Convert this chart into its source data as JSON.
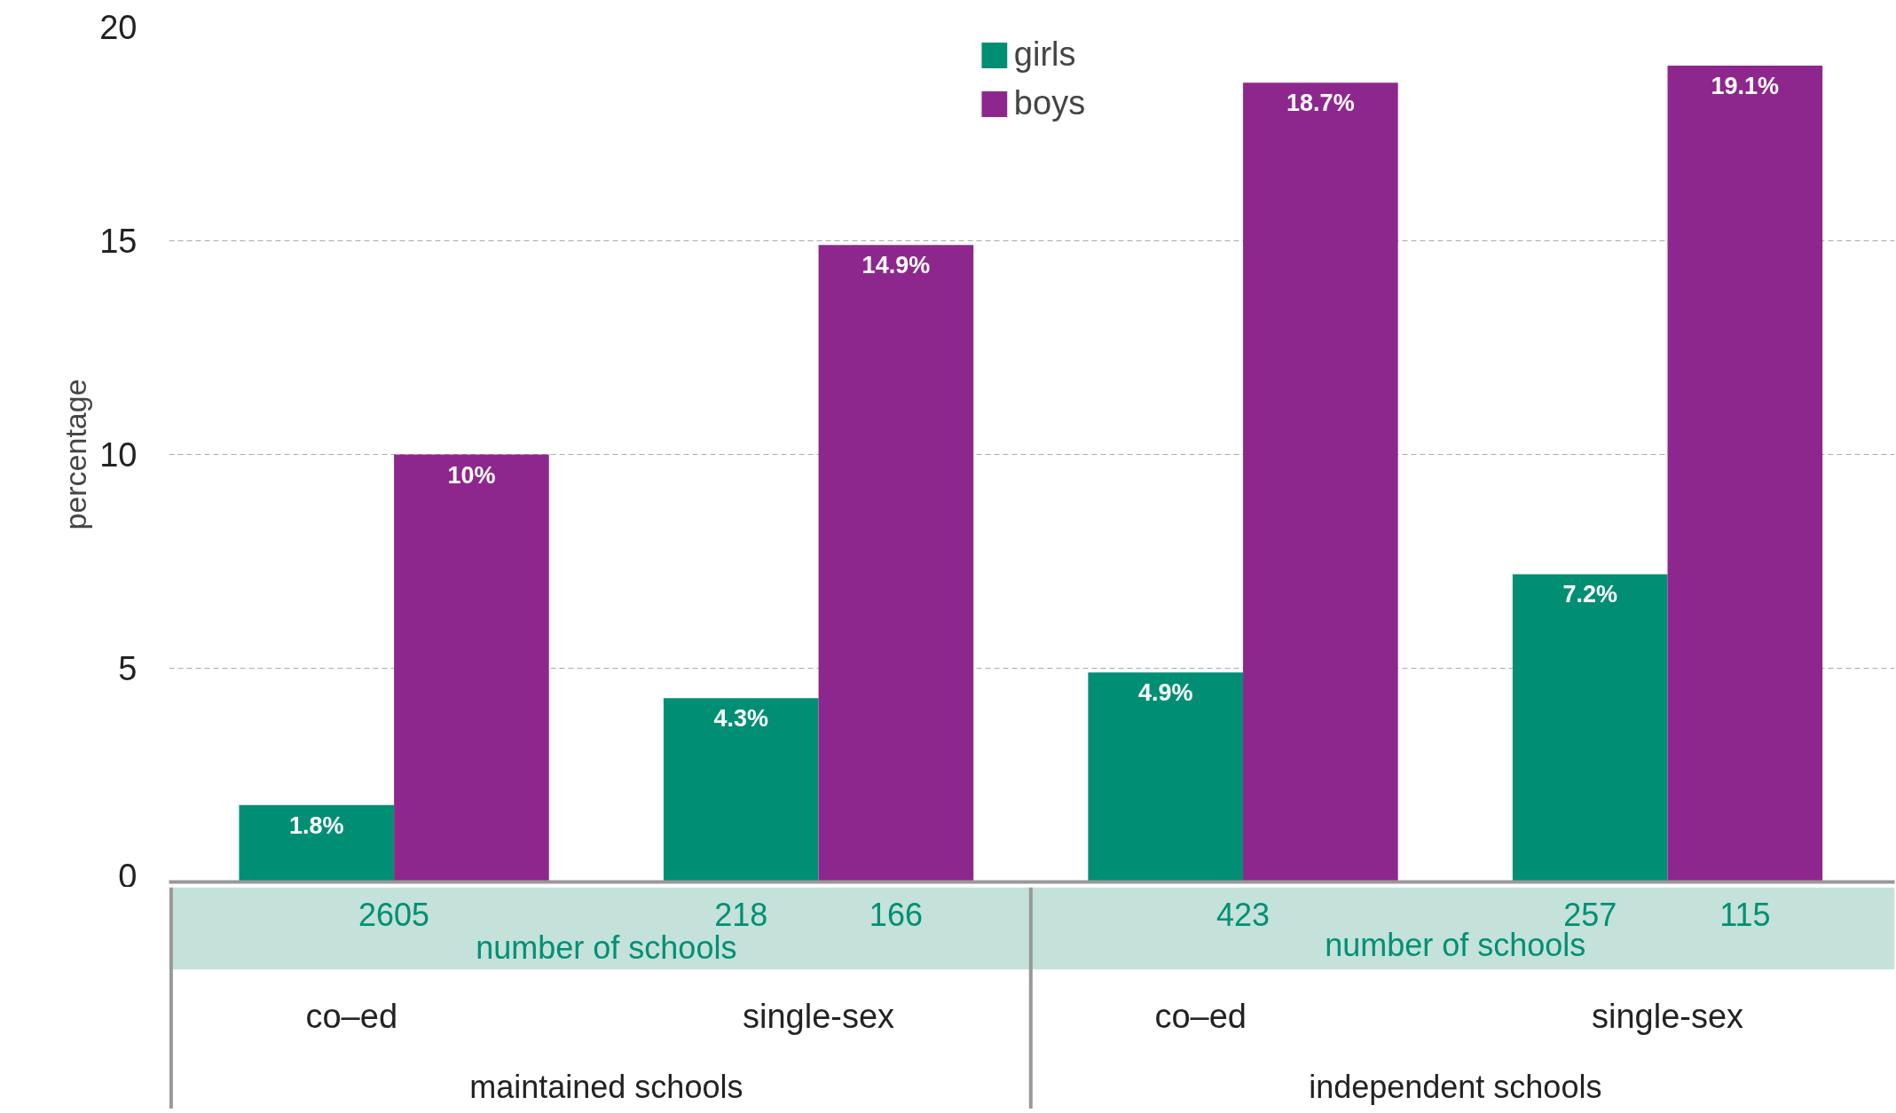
{
  "chart_data": {
    "type": "bar",
    "ylabel": "percentage",
    "categories": [
      "co–ed",
      "single-sex",
      "co–ed",
      "single-sex"
    ],
    "series": [
      {
        "name": "girls",
        "color": "#008f74",
        "values": [
          1.8,
          4.3,
          4.9,
          7.2
        ],
        "value_labels": [
          "1.8%",
          "4.3%",
          "4.9%",
          "7.2%"
        ]
      },
      {
        "name": "boys",
        "color": "#8e278d",
        "values": [
          10,
          14.9,
          18.7,
          19.1
        ],
        "value_labels": [
          "10%",
          "14.9%",
          "18.7%",
          "19.1%"
        ]
      }
    ],
    "ylim": [
      0,
      20
    ],
    "yticks": [
      0,
      5,
      10,
      15,
      20
    ],
    "grid": "y",
    "legend": "top",
    "annotations": [
      "2605",
      "218",
      "166",
      "423",
      "257",
      "115",
      "number of schools",
      "number of schools",
      "maintained schools",
      "independent schools"
    ]
  }
}
